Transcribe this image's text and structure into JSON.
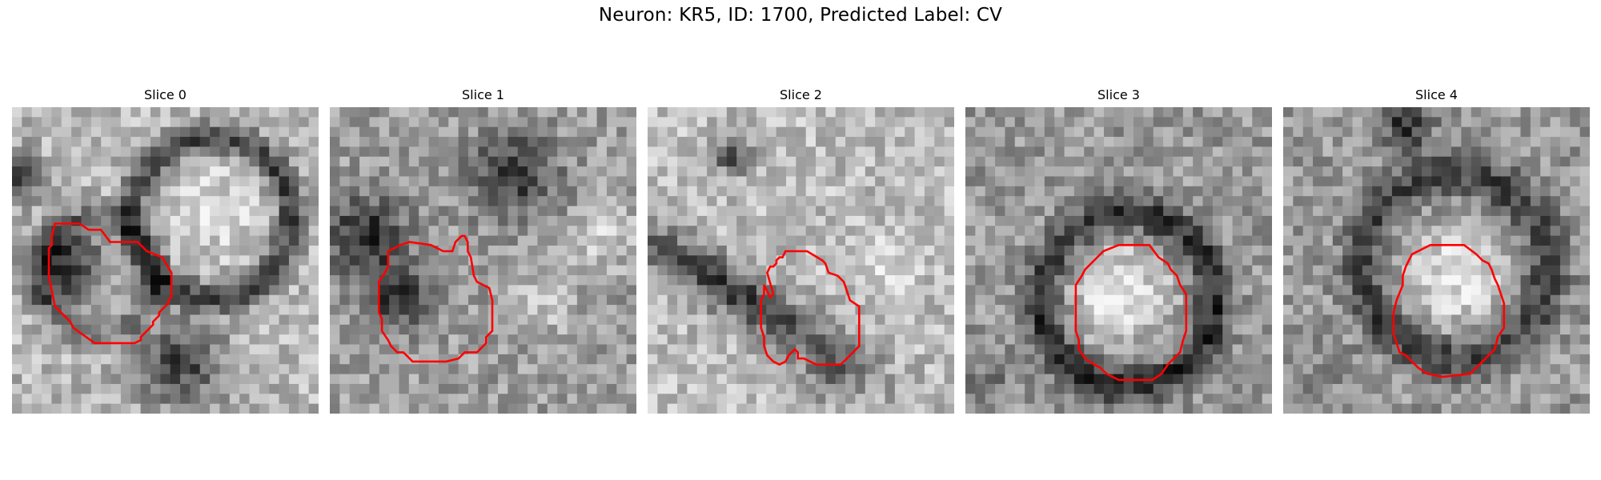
{
  "figure": {
    "title": "Neuron: KR5, ID: 1700, Predicted Label: CV",
    "contour_color": "#ff0000"
  },
  "panels": [
    {
      "title": "Slice 0"
    },
    {
      "title": "Slice 1"
    },
    {
      "title": "Slice 2"
    },
    {
      "title": "Slice 3"
    },
    {
      "title": "Slice 4"
    }
  ]
}
